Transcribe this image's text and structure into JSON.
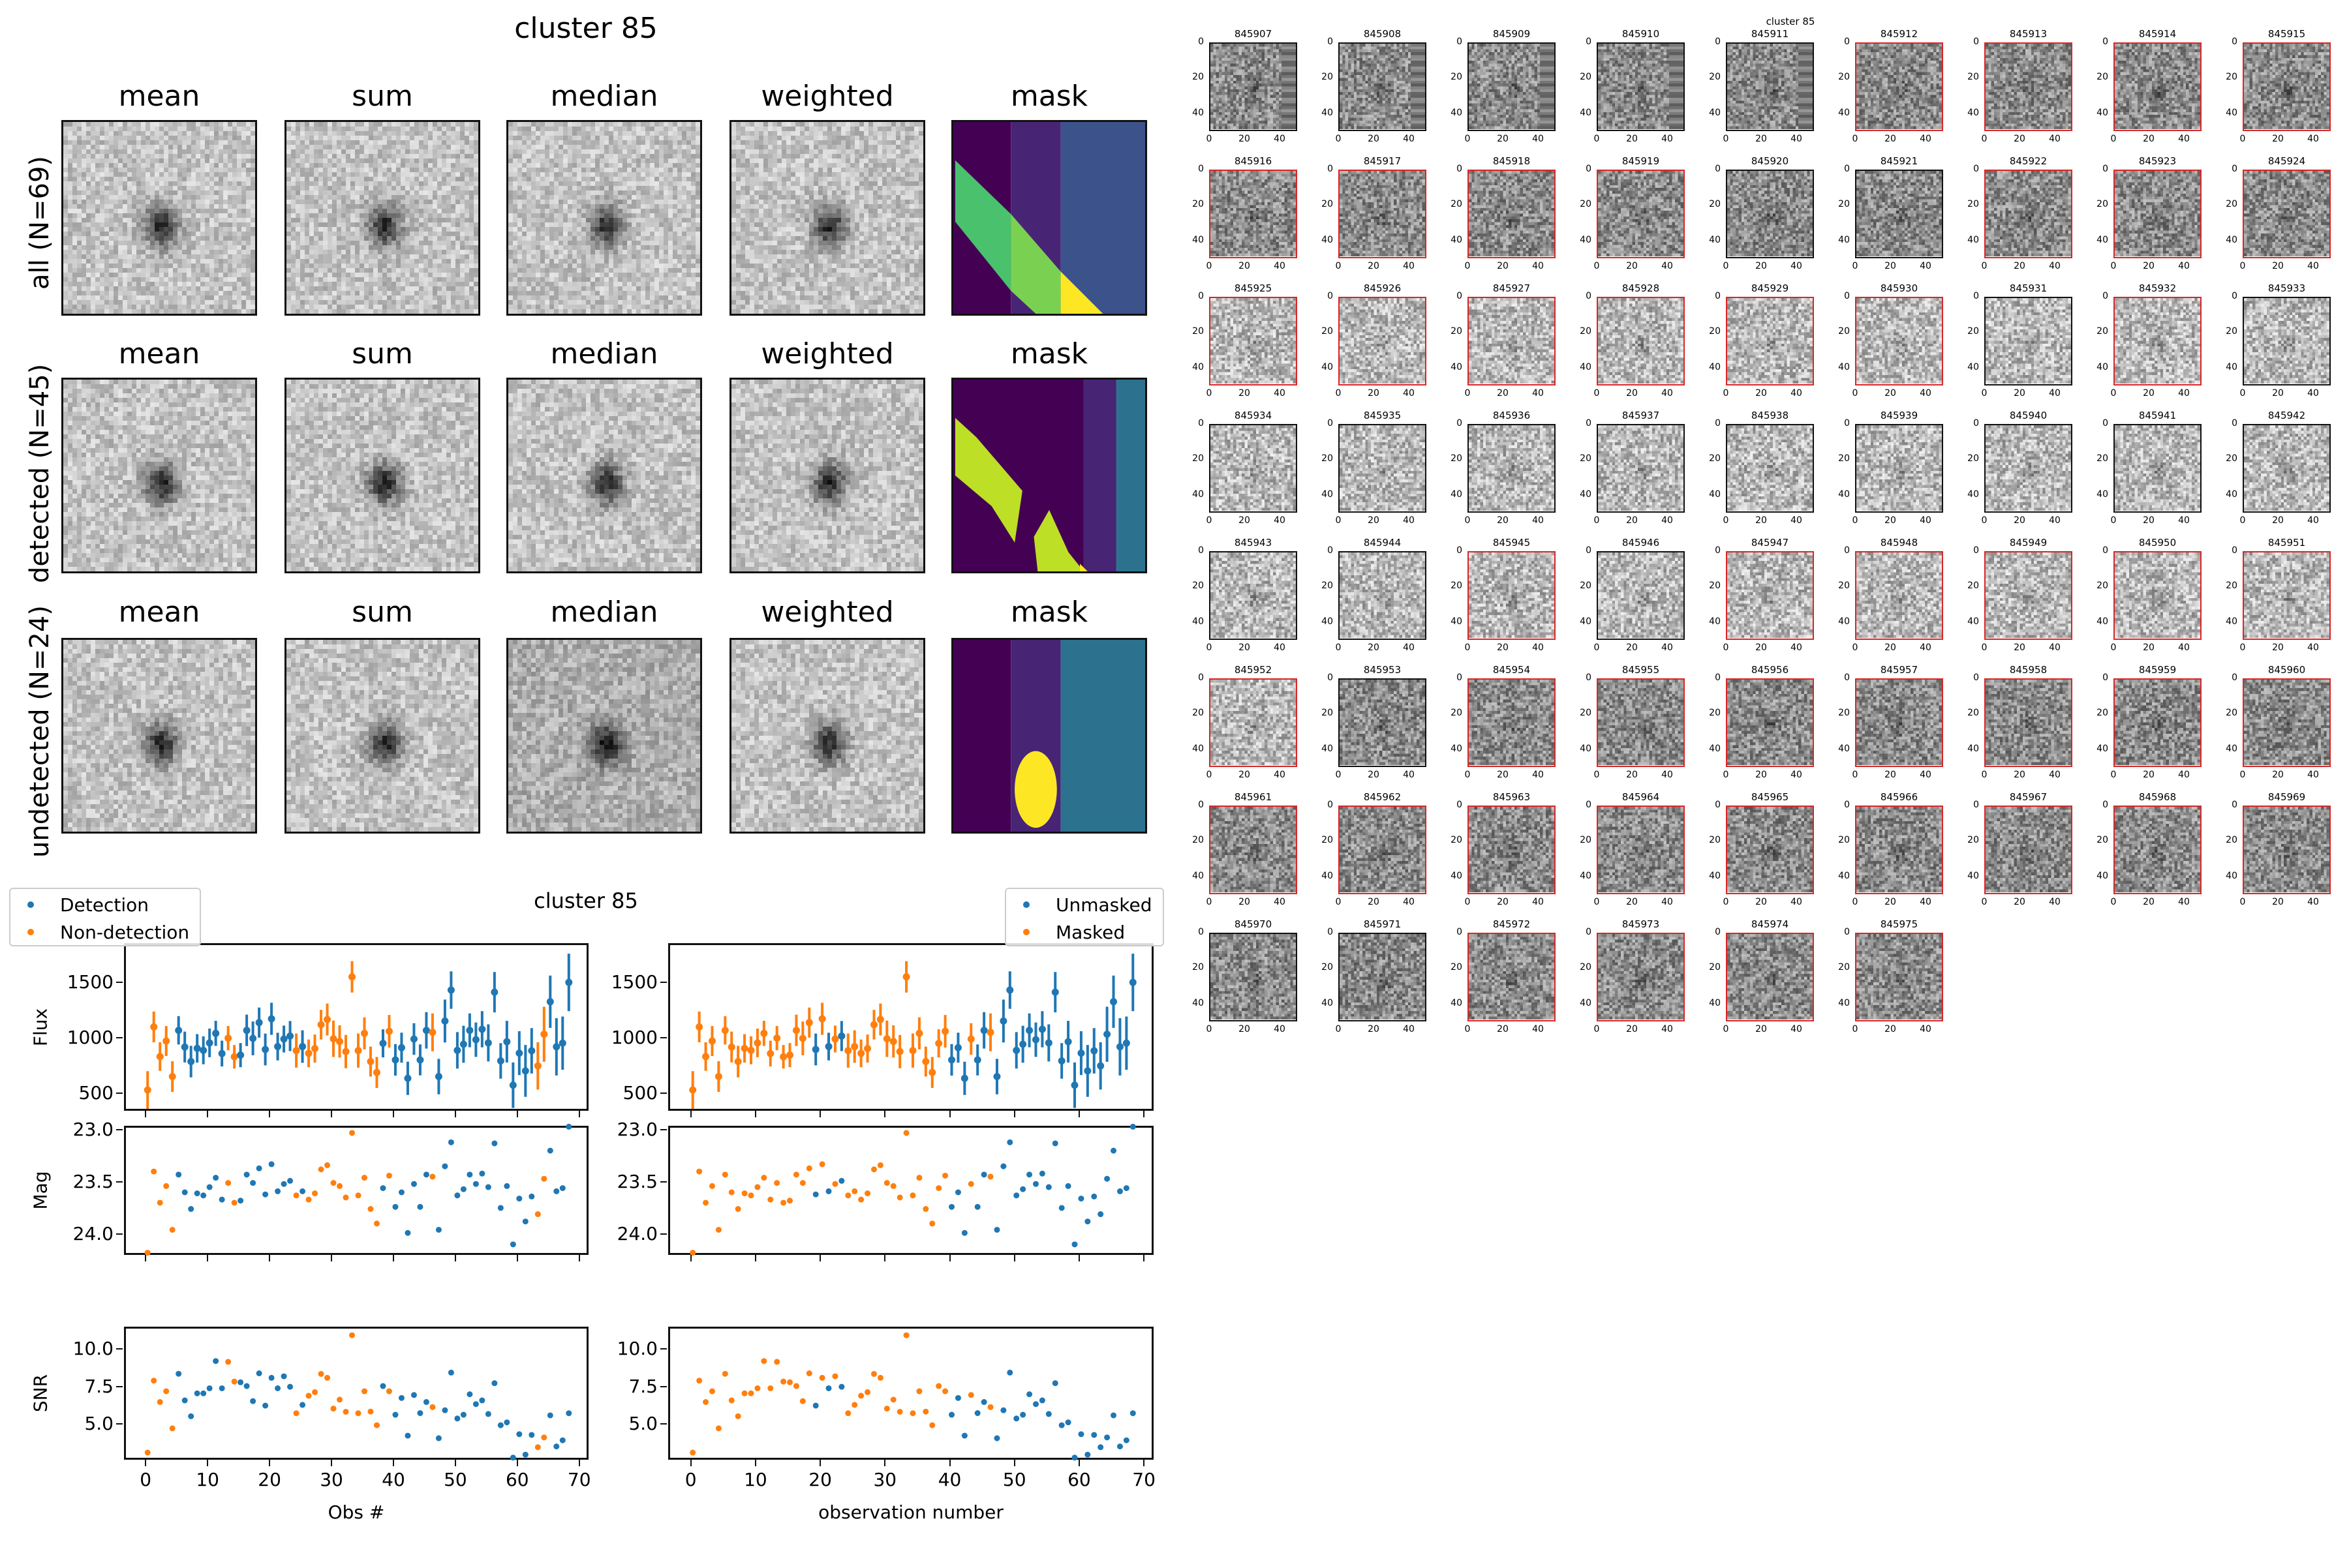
{
  "figure": {
    "title": "cluster 85",
    "stack_panel": {
      "column_titles": [
        "mean",
        "sum",
        "median",
        "weighted",
        "mask"
      ],
      "rows": [
        {
          "label": "all (N=69)",
          "n": 69,
          "mask_style": "all"
        },
        {
          "label": "detected (N=45)",
          "n": 45,
          "mask_style": "detected"
        },
        {
          "label": "undetected (N=24)",
          "n": 24,
          "mask_style": "undetected"
        }
      ],
      "mask_colormap": [
        "#440154",
        "#482475",
        "#3b528b",
        "#2c728e",
        "#4ac16d",
        "#7ad151",
        "#bddf26",
        "#fde725"
      ]
    },
    "lightcurve_title": "cluster 85",
    "thumbnail_grid": {
      "title": "cluster 85",
      "tick_labels": [
        "0",
        "20",
        "40"
      ],
      "highlight_color": "#d62728",
      "ids": [
        "845907",
        "845908",
        "845909",
        "845910",
        "845911",
        "845912",
        "845913",
        "845914",
        "845915",
        "845916",
        "845917",
        "845918",
        "845919",
        "845920",
        "845921",
        "845922",
        "845923",
        "845924",
        "845925",
        "845926",
        "845927",
        "845928",
        "845929",
        "845930",
        "845931",
        "845932",
        "845933",
        "845934",
        "845935",
        "845936",
        "845937",
        "845938",
        "845939",
        "845940",
        "845941",
        "845942",
        "845943",
        "845944",
        "845945",
        "845946",
        "845947",
        "845948",
        "845949",
        "845950",
        "845951",
        "845952",
        "845953",
        "845954",
        "845955",
        "845956",
        "845957",
        "845958",
        "845959",
        "845960",
        "845961",
        "845962",
        "845963",
        "845964",
        "845965",
        "845966",
        "845967",
        "845968",
        "845969",
        "845970",
        "845971",
        "845972",
        "845973",
        "845974",
        "845975"
      ],
      "highlighted_red_border": [
        false,
        false,
        false,
        false,
        false,
        true,
        true,
        true,
        true,
        true,
        true,
        true,
        true,
        false,
        false,
        true,
        true,
        true,
        true,
        true,
        true,
        true,
        true,
        true,
        false,
        true,
        false,
        false,
        false,
        false,
        false,
        false,
        false,
        false,
        false,
        false,
        false,
        false,
        true,
        false,
        true,
        true,
        true,
        true,
        true,
        true,
        false,
        true,
        true,
        true,
        true,
        true,
        true,
        true,
        true,
        true,
        true,
        true,
        true,
        true,
        true,
        true,
        true,
        false,
        false,
        true,
        true,
        true,
        true
      ]
    }
  },
  "chart_data": [
    {
      "type": "scatter",
      "name": "flux-detection",
      "title": "",
      "xlabel": "",
      "ylabel": "Flux",
      "xlim": [
        -3.5,
        71.5
      ],
      "ylim": [
        340,
        1850
      ],
      "yticks": [
        500,
        1000,
        1500
      ],
      "ytick_labels": [
        "500",
        "1000",
        "1500"
      ],
      "xticks": [
        0,
        10,
        20,
        30,
        40,
        50,
        60,
        70
      ],
      "error_bars": true,
      "series_key": "detected",
      "legend": {
        "placement": "top-left",
        "entries": [
          {
            "label": "Detection",
            "color": "#1f77b4"
          },
          {
            "label": "Non-detection",
            "color": "#ff7f0e"
          }
        ]
      }
    },
    {
      "type": "scatter",
      "name": "mag-detection",
      "ylabel": "Mag",
      "ylim": [
        24.2,
        22.96
      ],
      "yticks": [
        23.0,
        23.5,
        24.0
      ],
      "ytick_labels": [
        "23.0",
        "23.5",
        "24.0"
      ],
      "xlim": [
        -3.5,
        71.5
      ],
      "xticks": [
        0,
        10,
        20,
        30,
        40,
        50,
        60,
        70
      ],
      "series_key": "detected"
    },
    {
      "type": "scatter",
      "name": "snr-detection",
      "ylabel": "SNR",
      "xlabel": "Obs #",
      "ylim": [
        2.6,
        11.5
      ],
      "yticks": [
        5.0,
        7.5,
        10.0
      ],
      "ytick_labels": [
        "5.0",
        "7.5",
        "10.0"
      ],
      "xlim": [
        -3.5,
        71.5
      ],
      "xticks": [
        0,
        10,
        20,
        30,
        40,
        50,
        60,
        70
      ],
      "xtick_labels": [
        "0",
        "10",
        "20",
        "30",
        "40",
        "50",
        "60",
        "70"
      ],
      "series_key": "detected"
    },
    {
      "type": "scatter",
      "name": "flux-mask",
      "ylabel": "",
      "xlim": [
        -3.5,
        71.5
      ],
      "ylim": [
        340,
        1850
      ],
      "yticks": [
        500,
        1000,
        1500
      ],
      "ytick_labels": [
        "500",
        "1000",
        "1500"
      ],
      "xticks": [
        0,
        10,
        20,
        30,
        40,
        50,
        60,
        70
      ],
      "error_bars": true,
      "series_key": "unmasked",
      "legend": {
        "placement": "top-right",
        "entries": [
          {
            "label": "Unmasked",
            "color": "#1f77b4"
          },
          {
            "label": "Masked",
            "color": "#ff7f0e"
          }
        ]
      }
    },
    {
      "type": "scatter",
      "name": "mag-mask",
      "ylim": [
        24.2,
        22.96
      ],
      "yticks": [
        23.0,
        23.5,
        24.0
      ],
      "ytick_labels": [
        "23.0",
        "23.5",
        "24.0"
      ],
      "xlim": [
        -3.5,
        71.5
      ],
      "xticks": [
        0,
        10,
        20,
        30,
        40,
        50,
        60,
        70
      ],
      "series_key": "unmasked"
    },
    {
      "type": "scatter",
      "name": "snr-mask",
      "xlabel": "observation number",
      "ylim": [
        2.6,
        11.5
      ],
      "yticks": [
        5.0,
        7.5,
        10.0
      ],
      "ytick_labels": [
        "5.0",
        "7.5",
        "10.0"
      ],
      "xlim": [
        -3.5,
        71.5
      ],
      "xticks": [
        0,
        10,
        20,
        30,
        40,
        50,
        60,
        70
      ],
      "xtick_labels": [
        "0",
        "10",
        "20",
        "30",
        "40",
        "50",
        "60",
        "70"
      ],
      "series_key": "unmasked"
    }
  ],
  "observations": {
    "obs": [
      0,
      1,
      2,
      3,
      4,
      5,
      6,
      7,
      8,
      9,
      10,
      11,
      12,
      13,
      14,
      15,
      16,
      17,
      18,
      19,
      20,
      21,
      22,
      23,
      24,
      25,
      26,
      27,
      28,
      29,
      30,
      31,
      32,
      33,
      34,
      35,
      36,
      37,
      38,
      39,
      40,
      41,
      42,
      43,
      44,
      45,
      46,
      47,
      48,
      49,
      50,
      51,
      52,
      53,
      54,
      55,
      56,
      57,
      58,
      59,
      60,
      61,
      62,
      63,
      64,
      65,
      66,
      67,
      68
    ],
    "flux": [
      545,
      1113,
      846,
      986,
      666,
      1082,
      932,
      801,
      920,
      902,
      969,
      1055,
      873,
      1012,
      844,
      859,
      1082,
      1010,
      1152,
      910,
      1186,
      936,
      1004,
      1031,
      900,
      936,
      875,
      918,
      1133,
      1180,
      1006,
      982,
      891,
      1564,
      900,
      1055,
      801,
      703,
      965,
      1074,
      816,
      926,
      650,
      1004,
      816,
      1082,
      1064,
      666,
      1166,
      1445,
      902,
      957,
      1082,
      998,
      1092,
      969,
      1426,
      807,
      980,
      588,
      877,
      717,
      898,
      762,
      1047,
      1340,
      934,
      967,
      1514
    ],
    "mag": [
      24.16,
      23.38,
      23.68,
      23.52,
      23.94,
      23.41,
      23.58,
      23.74,
      23.59,
      23.61,
      23.53,
      23.44,
      23.65,
      23.49,
      23.68,
      23.66,
      23.41,
      23.49,
      23.35,
      23.6,
      23.31,
      23.57,
      23.5,
      23.47,
      23.61,
      23.57,
      23.65,
      23.59,
      23.36,
      23.32,
      23.49,
      23.52,
      23.63,
      23.01,
      23.61,
      23.44,
      23.74,
      23.88,
      23.54,
      23.42,
      23.72,
      23.58,
      23.97,
      23.5,
      23.72,
      23.41,
      23.43,
      23.94,
      23.33,
      23.1,
      23.61,
      23.55,
      23.41,
      23.5,
      23.4,
      23.53,
      23.11,
      23.73,
      23.52,
      24.08,
      23.64,
      23.86,
      23.62,
      23.79,
      23.45,
      23.18,
      23.57,
      23.54,
      22.95
    ],
    "snr": [
      3.21,
      8.02,
      6.59,
      7.31,
      4.83,
      8.48,
      6.7,
      5.64,
      7.17,
      7.17,
      7.51,
      9.33,
      7.51,
      9.28,
      7.96,
      7.91,
      7.66,
      6.65,
      8.51,
      6.35,
      8.21,
      7.51,
      8.31,
      7.61,
      5.84,
      6.4,
      7.01,
      7.25,
      8.47,
      8.21,
      6.15,
      6.75,
      5.94,
      11.06,
      5.84,
      7.31,
      5.95,
      5.04,
      7.66,
      7.31,
      5.74,
      6.86,
      4.34,
      7.06,
      5.85,
      6.59,
      6.25,
      4.17,
      6.04,
      8.56,
      5.49,
      5.74,
      7.11,
      6.45,
      6.7,
      5.79,
      7.85,
      5.04,
      5.23,
      2.87,
      4.44,
      3.07,
      4.39,
      3.57,
      4.22,
      5.7,
      3.62,
      4.03,
      5.84
    ],
    "detected": [
      false,
      false,
      false,
      false,
      false,
      true,
      true,
      true,
      true,
      true,
      true,
      true,
      true,
      false,
      false,
      true,
      true,
      true,
      true,
      true,
      true,
      true,
      true,
      true,
      false,
      true,
      false,
      false,
      false,
      false,
      false,
      false,
      false,
      false,
      false,
      false,
      false,
      false,
      true,
      false,
      true,
      true,
      true,
      true,
      true,
      true,
      false,
      true,
      true,
      true,
      true,
      true,
      true,
      true,
      true,
      true,
      true,
      true,
      true,
      true,
      true,
      true,
      true,
      false,
      false,
      true,
      true,
      true,
      true
    ],
    "unmasked": [
      false,
      false,
      false,
      false,
      false,
      false,
      false,
      false,
      false,
      false,
      false,
      false,
      false,
      false,
      false,
      false,
      false,
      false,
      false,
      true,
      false,
      true,
      false,
      true,
      false,
      false,
      false,
      false,
      false,
      false,
      false,
      false,
      false,
      false,
      false,
      false,
      false,
      false,
      false,
      false,
      true,
      true,
      true,
      false,
      true,
      true,
      false,
      true,
      true,
      true,
      true,
      true,
      true,
      true,
      true,
      true,
      true,
      true,
      true,
      true,
      true,
      true,
      true,
      true,
      true,
      true,
      true,
      true,
      true
    ]
  },
  "colors": {
    "blue": "#1f77b4",
    "orange": "#ff7f0e",
    "axis": "#111111"
  }
}
